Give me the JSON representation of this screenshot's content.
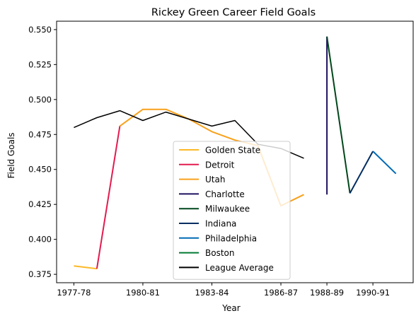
{
  "chart_data": {
    "type": "line",
    "title": "Rickey Green Career Field Goals",
    "xlabel": "Year",
    "ylabel": "Field Goals",
    "x_categories": [
      "1977-78",
      "1978-79",
      "1979-80",
      "1980-81",
      "1981-82",
      "1982-83",
      "1983-84",
      "1984-85",
      "1985-86",
      "1986-87",
      "1987-88",
      "1988-89",
      "1989-90",
      "1990-91",
      "1991-92"
    ],
    "x_tick_labels": [
      "1977-78",
      "1980-81",
      "1983-84",
      "1986-87",
      "1988-89",
      "1990-91"
    ],
    "xlim_index": [
      -0.75,
      14.75
    ],
    "y_ticks": [
      "0.375",
      "0.400",
      "0.425",
      "0.450",
      "0.475",
      "0.500",
      "0.525",
      "0.550"
    ],
    "ylim": [
      0.369,
      0.556
    ],
    "grid": false,
    "legend_position": "bottom-center",
    "series": [
      {
        "name": "Golden State",
        "color": "#fdb927",
        "points": [
          [
            "1977-78",
            0.381
          ],
          [
            "1978-79",
            0.379
          ]
        ]
      },
      {
        "name": "Detroit",
        "color": "#e31b4f",
        "points": [
          [
            "1978-79",
            0.379
          ],
          [
            "1979-80",
            0.481
          ]
        ]
      },
      {
        "name": "Utah",
        "color": "#f9a11b",
        "points": [
          [
            "1979-80",
            0.481
          ],
          [
            "1980-81",
            0.493
          ],
          [
            "1981-82",
            0.493
          ],
          [
            "1982-83",
            0.486
          ],
          [
            "1983-84",
            0.477
          ],
          [
            "1984-85",
            0.471
          ],
          [
            "1985-86",
            0.467
          ],
          [
            "1986-87",
            0.424
          ],
          [
            "1987-88",
            0.432
          ]
        ]
      },
      {
        "name": "Charlotte",
        "color": "#1d1160",
        "points": [
          [
            "1988-89",
            0.545
          ],
          [
            "1988-89",
            0.432
          ]
        ]
      },
      {
        "name": "Milwaukee",
        "color": "#00471b",
        "points": [
          [
            "1988-89",
            0.545
          ],
          [
            "1989-90",
            0.433
          ]
        ]
      },
      {
        "name": "Indiana",
        "color": "#002d62",
        "points": [
          [
            "1989-90",
            0.433
          ],
          [
            "1990-91",
            0.463
          ]
        ]
      },
      {
        "name": "Philadelphia",
        "color": "#006bb6",
        "points": [
          [
            "1990-91",
            0.463
          ],
          [
            "1991-92",
            0.447
          ]
        ]
      },
      {
        "name": "Boston",
        "color": "#007a33",
        "points": []
      },
      {
        "name": "League Average",
        "color": "#000000",
        "points": [
          [
            "1977-78",
            0.48
          ],
          [
            "1978-79",
            0.487
          ],
          [
            "1979-80",
            0.492
          ],
          [
            "1980-81",
            0.485
          ],
          [
            "1981-82",
            0.491
          ],
          [
            "1982-83",
            0.486
          ],
          [
            "1983-84",
            0.481
          ],
          [
            "1984-85",
            0.485
          ],
          [
            "1985-86",
            0.468
          ],
          [
            "1986-87",
            0.465
          ],
          [
            "1987-88",
            0.458
          ]
        ]
      }
    ]
  }
}
